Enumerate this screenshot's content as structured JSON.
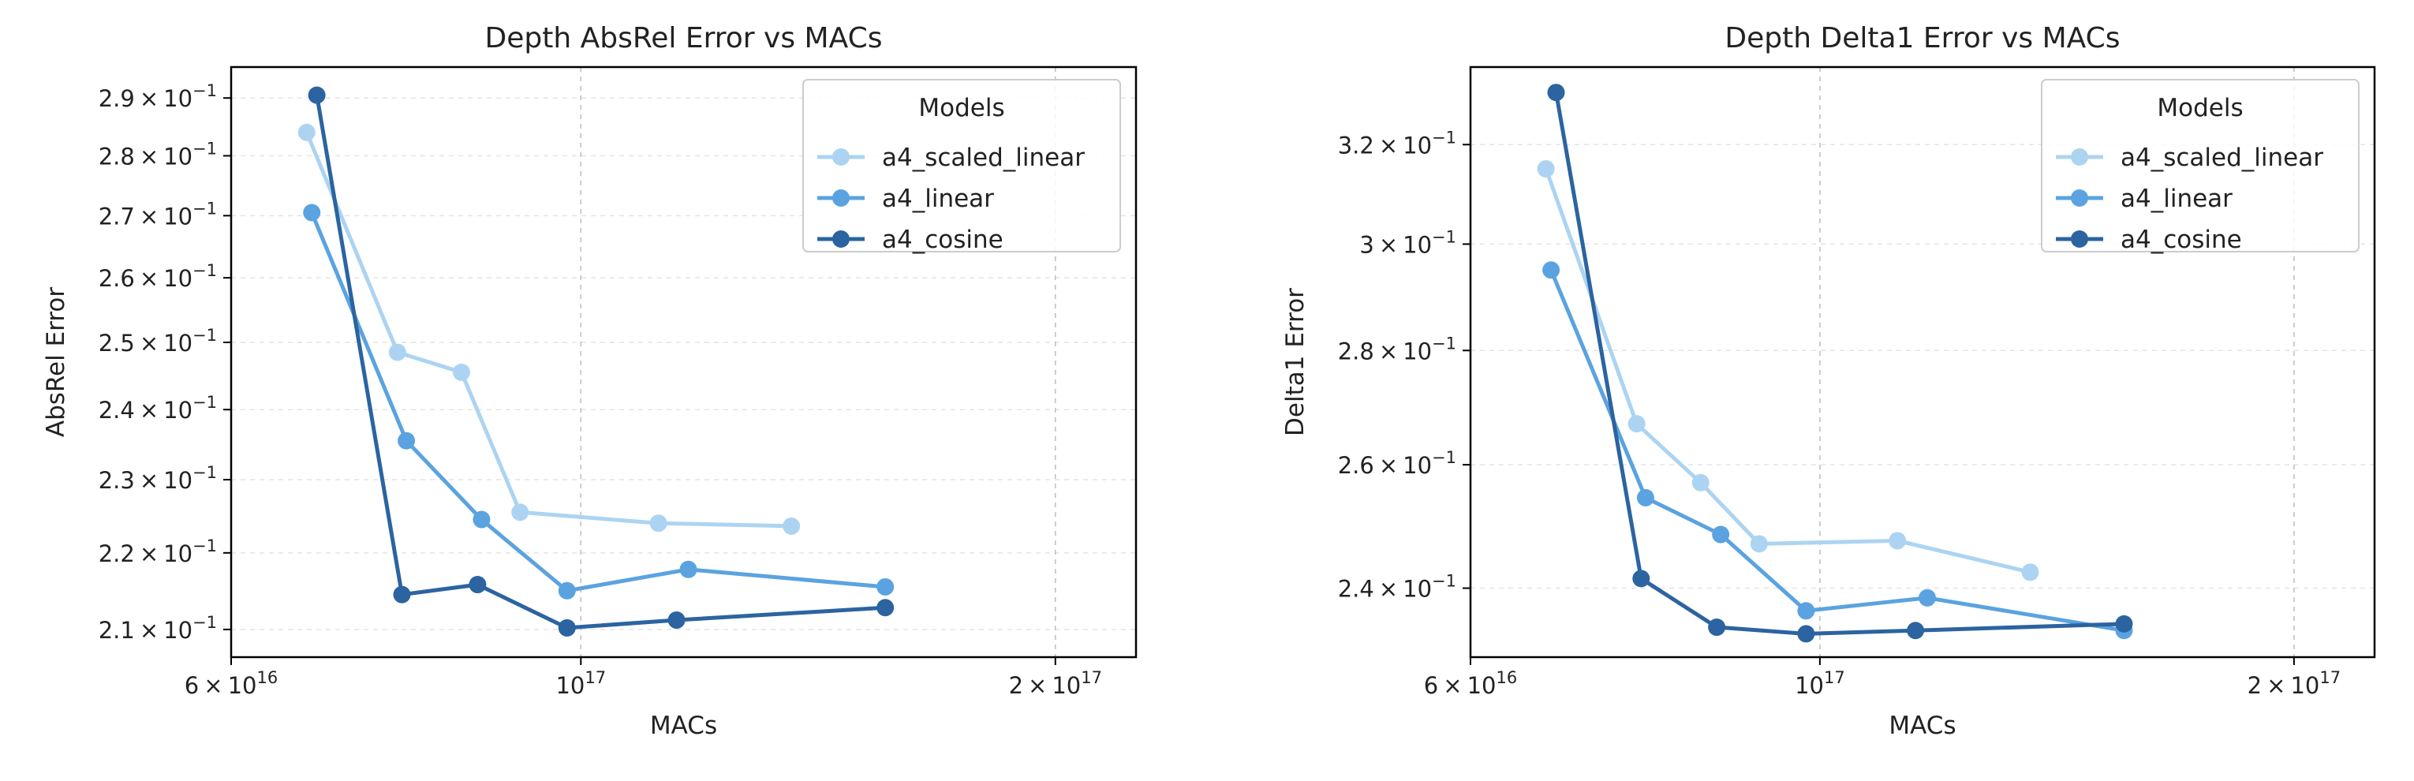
{
  "chart_data": [
    {
      "type": "line",
      "title": "Depth AbsRel Error vs MACs",
      "xlabel": "MACs",
      "ylabel": "AbsRel Error",
      "xscale": "log",
      "yscale": "log",
      "xlim": [
        6e+16,
        2.25e+17
      ],
      "ylim": [
        0.2065,
        0.2955
      ],
      "xticks": [
        {
          "value": 6e+16,
          "mantissa": "6",
          "times": "×",
          "base": "10",
          "exp": "16"
        },
        {
          "value": 1e+17,
          "mantissa": "",
          "times": "",
          "base": "10",
          "exp": "17"
        },
        {
          "value": 2e+17,
          "mantissa": "2",
          "times": "×",
          "base": "10",
          "exp": "17"
        }
      ],
      "xgrid": [
        1e+17,
        2e+17
      ],
      "yticks": [
        {
          "value": 0.21,
          "mantissa": "2.1",
          "times": "×",
          "base": "10",
          "exp": "−1"
        },
        {
          "value": 0.22,
          "mantissa": "2.2",
          "times": "×",
          "base": "10",
          "exp": "−1"
        },
        {
          "value": 0.23,
          "mantissa": "2.3",
          "times": "×",
          "base": "10",
          "exp": "−1"
        },
        {
          "value": 0.24,
          "mantissa": "2.4",
          "times": "×",
          "base": "10",
          "exp": "−1"
        },
        {
          "value": 0.25,
          "mantissa": "2.5",
          "times": "×",
          "base": "10",
          "exp": "−1"
        },
        {
          "value": 0.26,
          "mantissa": "2.6",
          "times": "×",
          "base": "10",
          "exp": "−1"
        },
        {
          "value": 0.27,
          "mantissa": "2.7",
          "times": "×",
          "base": "10",
          "exp": "−1"
        },
        {
          "value": 0.28,
          "mantissa": "2.8",
          "times": "×",
          "base": "10",
          "exp": "−1"
        },
        {
          "value": 0.29,
          "mantissa": "2.9",
          "times": "×",
          "base": "10",
          "exp": "−1"
        }
      ],
      "legend": {
        "title": "Models",
        "placement": "top-right"
      },
      "series": [
        {
          "name": "a4_scaled_linear",
          "color": "#acd4f2",
          "x": [
            6.7e+16,
            7.65e+16,
            8.4e+16,
            9.15e+16,
            1.12e+17,
            1.36e+17
          ],
          "y": [
            0.284,
            0.2485,
            0.2455,
            0.2255,
            0.224,
            0.2236
          ]
        },
        {
          "name": "a4_linear",
          "color": "#5ba3e0",
          "x": [
            6.75e+16,
            7.75e+16,
            8.65e+16,
            9.8e+16,
            1.17e+17,
            1.56e+17
          ],
          "y": [
            0.2705,
            0.2355,
            0.2245,
            0.215,
            0.2178,
            0.2155
          ]
        },
        {
          "name": "a4_cosine",
          "color": "#2b64a0",
          "x": [
            6.8e+16,
            7.7e+16,
            8.6e+16,
            9.8e+16,
            1.15e+17,
            1.56e+17
          ],
          "y": [
            0.2905,
            0.2145,
            0.2158,
            0.2102,
            0.2112,
            0.2128
          ]
        }
      ]
    },
    {
      "type": "line",
      "title": "Depth Delta1 Error vs MACs",
      "xlabel": "MACs",
      "ylabel": "Delta1 Error",
      "xscale": "log",
      "yscale": "log",
      "xlim": [
        6e+16,
        2.25e+17
      ],
      "ylim": [
        0.2295,
        0.3365
      ],
      "xticks": [
        {
          "value": 6e+16,
          "mantissa": "6",
          "times": "×",
          "base": "10",
          "exp": "16"
        },
        {
          "value": 1e+17,
          "mantissa": "",
          "times": "",
          "base": "10",
          "exp": "17"
        },
        {
          "value": 2e+17,
          "mantissa": "2",
          "times": "×",
          "base": "10",
          "exp": "17"
        }
      ],
      "xgrid": [
        1e+17,
        2e+17
      ],
      "yticks": [
        {
          "value": 0.24,
          "mantissa": "2.4",
          "times": "×",
          "base": "10",
          "exp": "−1"
        },
        {
          "value": 0.26,
          "mantissa": "2.6",
          "times": "×",
          "base": "10",
          "exp": "−1"
        },
        {
          "value": 0.28,
          "mantissa": "2.8",
          "times": "×",
          "base": "10",
          "exp": "−1"
        },
        {
          "value": 0.3,
          "mantissa": "3",
          "times": "×",
          "base": "10",
          "exp": "−1"
        },
        {
          "value": 0.32,
          "mantissa": "3.2",
          "times": "×",
          "base": "10",
          "exp": "−1"
        }
      ],
      "legend": {
        "title": "Models",
        "placement": "top-right"
      },
      "series": [
        {
          "name": "a4_scaled_linear",
          "color": "#acd4f2",
          "x": [
            6.7e+16,
            7.65e+16,
            8.4e+16,
            9.15e+16,
            1.12e+17,
            1.36e+17
          ],
          "y": [
            0.315,
            0.267,
            0.257,
            0.247,
            0.2475,
            0.2425
          ]
        },
        {
          "name": "a4_linear",
          "color": "#5ba3e0",
          "x": [
            6.75e+16,
            7.75e+16,
            8.65e+16,
            9.8e+16,
            1.17e+17,
            1.56e+17
          ],
          "y": [
            0.295,
            0.2545,
            0.2485,
            0.2365,
            0.2385,
            0.2335
          ]
        },
        {
          "name": "a4_cosine",
          "color": "#2b64a0",
          "x": [
            6.8e+16,
            7.7e+16,
            8.6e+16,
            9.8e+16,
            1.15e+17,
            1.56e+17
          ],
          "y": [
            0.331,
            0.2415,
            0.234,
            0.233,
            0.2335,
            0.2345
          ]
        }
      ]
    }
  ]
}
